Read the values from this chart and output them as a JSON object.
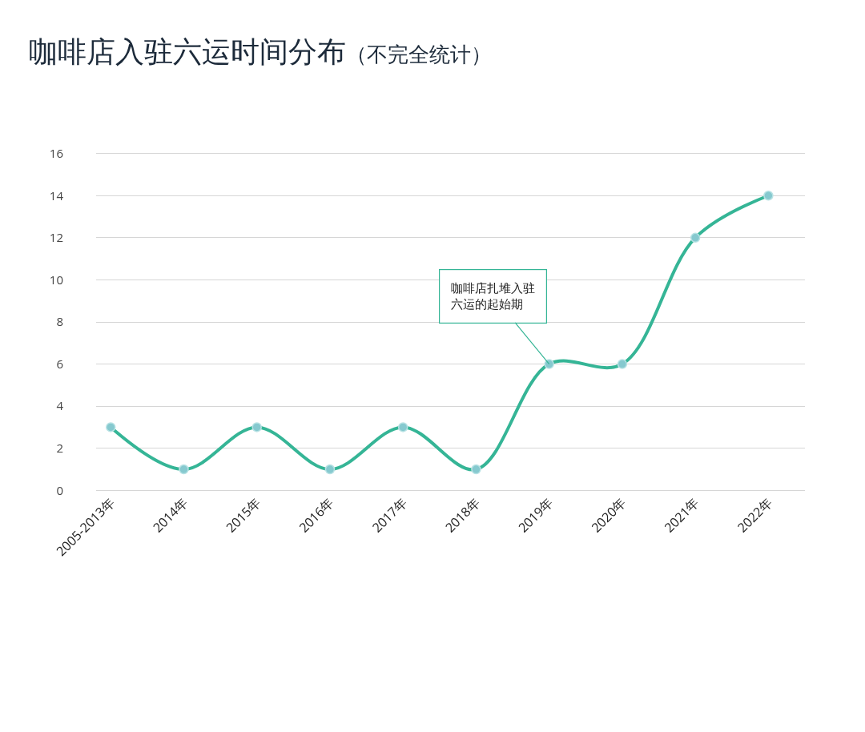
{
  "chart_data": {
    "type": "line",
    "title": "咖啡店入驻六运时间分布",
    "subtitle": "（不完全统计）",
    "categories": [
      "2005-2013年",
      "2014年",
      "2015年",
      "2016年",
      "2017年",
      "2018年",
      "2019年",
      "2020年",
      "2021年",
      "2022年"
    ],
    "series": [
      {
        "color": "#35b596",
        "values": [
          3,
          1,
          3,
          1,
          3,
          1,
          6,
          6,
          12,
          14
        ]
      }
    ],
    "ylim": [
      0,
      16
    ],
    "yticks": [
      0,
      2,
      4,
      6,
      8,
      10,
      12,
      14,
      16
    ],
    "grid": "y",
    "marker": "circle",
    "line_style": "solid",
    "annotations": [
      {
        "text": "咖啡店扎堆入驻六运的起始期",
        "x": "2019年",
        "y": 6
      }
    ]
  }
}
